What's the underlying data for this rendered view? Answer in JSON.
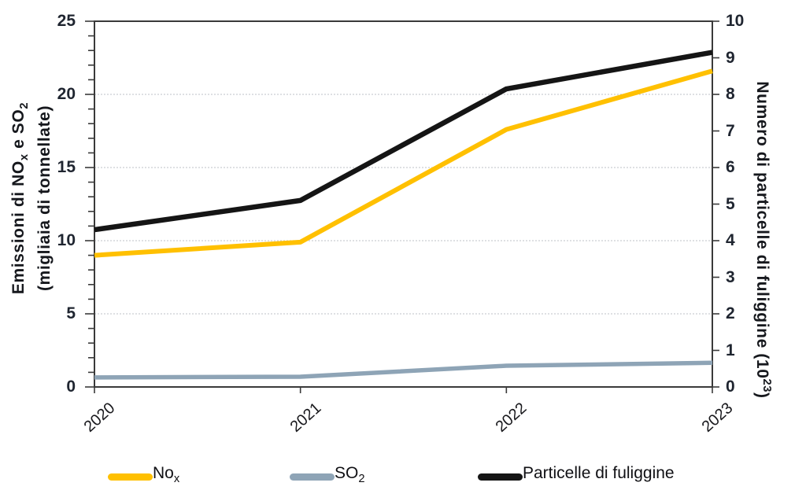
{
  "chart_data": {
    "type": "line",
    "title": "",
    "categories": [
      "2020",
      "2021",
      "2022",
      "2023"
    ],
    "series": [
      {
        "name": "NOx",
        "legend_main": "No",
        "legend_sub": "x",
        "color": "#FFC000",
        "axis": "left",
        "line_width": 6,
        "values": [
          9.0,
          9.9,
          17.6,
          21.6
        ]
      },
      {
        "name": "SO2",
        "legend_main": "SO",
        "legend_sub": "2",
        "color": "#8EA4B6",
        "axis": "left",
        "line_width": 5.5,
        "values": [
          0.65,
          0.7,
          1.45,
          1.65
        ]
      },
      {
        "name": "Particelle di fuliggine",
        "legend_main": "Particelle di fuliggine",
        "legend_sub": "",
        "color": "#151515",
        "axis": "right",
        "line_width": 6.5,
        "values": [
          4.3,
          5.1,
          8.15,
          9.15
        ]
      }
    ],
    "left_axis": {
      "title_line1_prefix": "Emissioni di NO",
      "title_line1_sub1": "x",
      "title_line1_mid": " e SO",
      "title_line1_sub2": "2",
      "title_line2": "(migliaia di tonnellate)",
      "range": [
        0,
        25
      ],
      "major_ticks": [
        0,
        5,
        10,
        15,
        20,
        25
      ],
      "minor_step": 1
    },
    "right_axis": {
      "title_prefix": "Numero di particelle di fuliggine (10",
      "title_sup": "23",
      "title_suffix": ")",
      "range": [
        0,
        10
      ],
      "major_ticks": [
        0,
        1,
        2,
        3,
        4,
        5,
        6,
        7,
        8,
        9,
        10
      ]
    },
    "gridlines": {
      "left_values": [
        5,
        10,
        15,
        20
      ],
      "style": "dotted",
      "color": "#c9cdd2"
    },
    "axis_line_color": "#3a3a3a",
    "legend_position": "bottom",
    "grid": true
  }
}
